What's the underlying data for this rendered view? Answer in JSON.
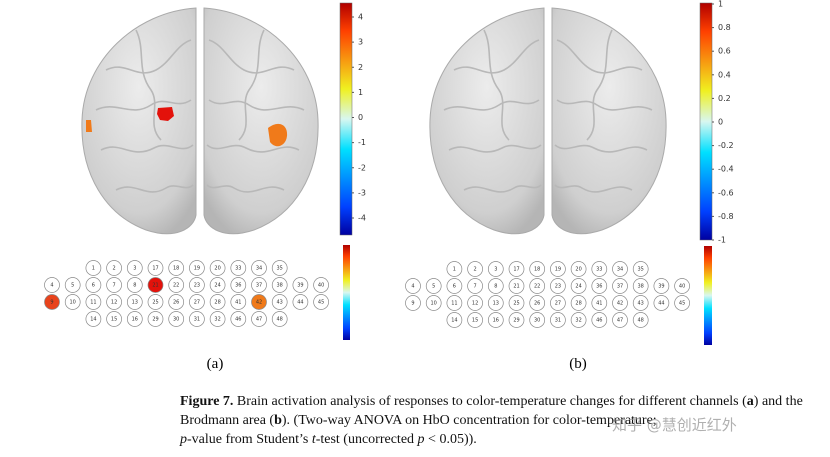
{
  "panel_a": {
    "label": "(a)",
    "colorbar_ticks": [
      "4",
      "3",
      "2",
      "1",
      "0",
      "-1",
      "-2",
      "-3",
      "-4"
    ],
    "channels": [
      [
        {
          "label": "1"
        },
        {
          "label": "2"
        },
        {
          "label": "3"
        },
        {
          "label": "17"
        },
        {
          "label": "18"
        },
        {
          "label": "19"
        },
        {
          "label": "20"
        },
        {
          "label": "33"
        },
        {
          "label": "34"
        },
        {
          "label": "35"
        }
      ],
      [
        {
          "label": "4"
        },
        {
          "label": "5"
        },
        {
          "label": "6"
        },
        {
          "label": "7"
        },
        {
          "label": "8"
        },
        {
          "label": "21",
          "color": "#e3120b"
        },
        {
          "label": "22"
        },
        {
          "label": "23"
        },
        {
          "label": "24"
        },
        {
          "label": "36"
        },
        {
          "label": "37"
        },
        {
          "label": "38"
        },
        {
          "label": "39"
        },
        {
          "label": "40"
        }
      ],
      [
        {
          "label": "9",
          "color": "#e8431c"
        },
        {
          "label": "10"
        },
        {
          "label": "11"
        },
        {
          "label": "12"
        },
        {
          "label": "13"
        },
        {
          "label": "25"
        },
        {
          "label": "26"
        },
        {
          "label": "27"
        },
        {
          "label": "28"
        },
        {
          "label": "41"
        },
        {
          "label": "42",
          "color": "#f07a1a"
        },
        {
          "label": "43"
        },
        {
          "label": "44"
        },
        {
          "label": "45"
        }
      ],
      [
        {
          "label": "14"
        },
        {
          "label": "15"
        },
        {
          "label": "16"
        },
        {
          "label": "29"
        },
        {
          "label": "30"
        },
        {
          "label": "31"
        },
        {
          "label": "32"
        },
        {
          "label": "46"
        },
        {
          "label": "47"
        },
        {
          "label": "48"
        }
      ]
    ]
  },
  "panel_b": {
    "label": "(b)",
    "colorbar_ticks": [
      "1",
      "0.8",
      "0.6",
      "0.4",
      "0.2",
      "0",
      "-0.2",
      "-0.4",
      "-0.6",
      "-0.8",
      "-1"
    ],
    "channels": [
      [
        {
          "label": "1"
        },
        {
          "label": "2"
        },
        {
          "label": "3"
        },
        {
          "label": "17"
        },
        {
          "label": "18"
        },
        {
          "label": "19"
        },
        {
          "label": "20"
        },
        {
          "label": "33"
        },
        {
          "label": "34"
        },
        {
          "label": "35"
        }
      ],
      [
        {
          "label": "4"
        },
        {
          "label": "5"
        },
        {
          "label": "6"
        },
        {
          "label": "7"
        },
        {
          "label": "8"
        },
        {
          "label": "21"
        },
        {
          "label": "22"
        },
        {
          "label": "23"
        },
        {
          "label": "24"
        },
        {
          "label": "36"
        },
        {
          "label": "37"
        },
        {
          "label": "38"
        },
        {
          "label": "39"
        },
        {
          "label": "40"
        }
      ],
      [
        {
          "label": "9"
        },
        {
          "label": "10"
        },
        {
          "label": "11"
        },
        {
          "label": "12"
        },
        {
          "label": "13"
        },
        {
          "label": "25"
        },
        {
          "label": "26"
        },
        {
          "label": "27"
        },
        {
          "label": "28"
        },
        {
          "label": "41"
        },
        {
          "label": "42"
        },
        {
          "label": "43"
        },
        {
          "label": "44"
        },
        {
          "label": "45"
        }
      ],
      [
        {
          "label": "14"
        },
        {
          "label": "15"
        },
        {
          "label": "16"
        },
        {
          "label": "29"
        },
        {
          "label": "30"
        },
        {
          "label": "31"
        },
        {
          "label": "32"
        },
        {
          "label": "46"
        },
        {
          "label": "47"
        },
        {
          "label": "48"
        }
      ]
    ]
  },
  "caption": {
    "segments": [
      "Figure 7.",
      " Brain activation analysis of responses to color-temperature changes for different channels (",
      "a",
      ") and the Brodmann area (",
      "b",
      "). (Two-way ANOVA on HbO concentration for color-temperature;",
      "p",
      "-value from Student’s ",
      "t",
      "-test (uncorrected ",
      "p",
      " < 0.05))."
    ]
  },
  "watermark": "知乎 @慧创近红外"
}
